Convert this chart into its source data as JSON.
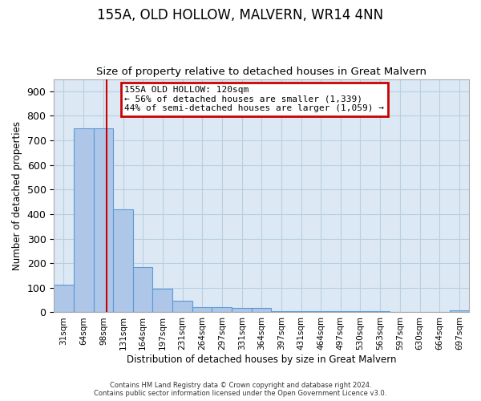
{
  "title": "155A, OLD HOLLOW, MALVERN, WR14 4NN",
  "subtitle": "Size of property relative to detached houses in Great Malvern",
  "xlabel": "Distribution of detached houses by size in Great Malvern",
  "ylabel": "Number of detached properties",
  "bar_edges": [
    31,
    64,
    98,
    131,
    164,
    197,
    231,
    264,
    297,
    331,
    364,
    397,
    431,
    464,
    497,
    530,
    563,
    597,
    630,
    664,
    697,
    730
  ],
  "bar_heights": [
    112,
    748,
    748,
    420,
    185,
    95,
    47,
    22,
    22,
    17,
    17,
    5,
    5,
    5,
    5,
    5,
    5,
    0,
    0,
    0,
    8
  ],
  "bar_color": "#aec6e8",
  "bar_edge_color": "#5b9bd5",
  "vline_x": 120,
  "vline_color": "#cc0000",
  "annotation_line1": "155A OLD HOLLOW: 120sqm",
  "annotation_line2": "← 56% of detached houses are smaller (1,339)",
  "annotation_line3": "44% of semi-detached houses are larger (1,059) →",
  "annotation_box_color": "#cc0000",
  "ylim": [
    0,
    950
  ],
  "yticks": [
    0,
    100,
    200,
    300,
    400,
    500,
    600,
    700,
    800,
    900
  ],
  "bg_color": "#ffffff",
  "axes_bg_color": "#dce9f5",
  "grid_color": "#b8cfe0",
  "footer_line1": "Contains HM Land Registry data © Crown copyright and database right 2024.",
  "footer_line2": "Contains public sector information licensed under the Open Government Licence v3.0.",
  "title_fontsize": 12,
  "subtitle_fontsize": 9.5,
  "xlabel_fontsize": 8.5,
  "ylabel_fontsize": 8.5,
  "tick_label_fontsize": 7.5,
  "annotation_fontsize": 8,
  "footer_fontsize": 6
}
